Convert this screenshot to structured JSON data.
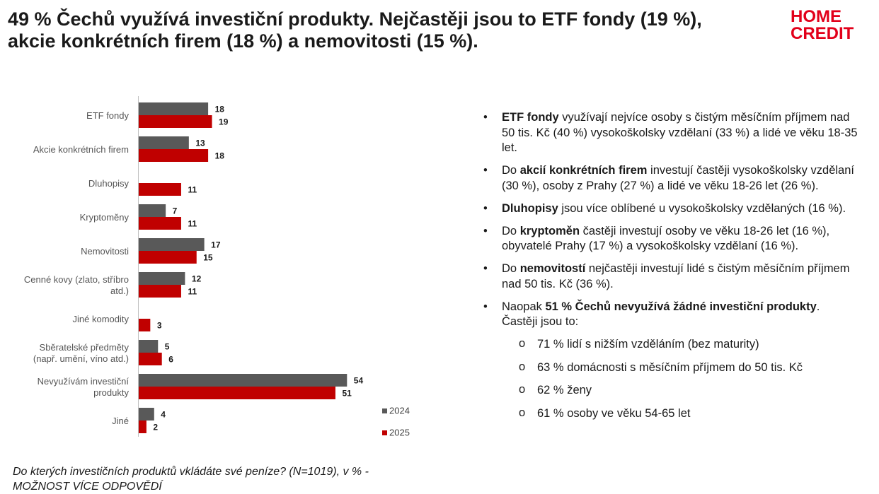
{
  "page": {
    "title_line1": "49 % Čechů využívá investiční produkty. Nejčastěji jsou to ETF fondy (19 %),",
    "title_line2": "akcie konkrétních firem (18 %) a nemovitosti (15 %).",
    "logo_line1": "HOME",
    "logo_line2": "CREDIT",
    "brand_color": "#e2001a",
    "footnote_line1": "Do kterých investičních produktů vkládáte své peníze? (N=1019), v % -",
    "footnote_line2": "MOŽNOST VÍCE ODPOVĚDÍ"
  },
  "chart_data": {
    "type": "bar",
    "orientation": "horizontal",
    "categories": [
      [
        "ETF fondy"
      ],
      [
        "Akcie konkrétních firem"
      ],
      [
        "Dluhopisy"
      ],
      [
        "Kryptoměny"
      ],
      [
        "Nemovitosti"
      ],
      [
        "Cenné kovy (zlato, stříbro",
        "atd.)"
      ],
      [
        "Jiné komodity"
      ],
      [
        "Sběratelské předměty",
        "(např. umění, víno atd.)"
      ],
      [
        "Nevyužívám investiční",
        "produkty"
      ],
      [
        "Jiné"
      ]
    ],
    "series": [
      {
        "name": "2024",
        "color": "#595959",
        "values": [
          18,
          13,
          null,
          7,
          17,
          12,
          null,
          5,
          54,
          4
        ]
      },
      {
        "name": "2025",
        "color": "#c00000",
        "values": [
          19,
          18,
          11,
          11,
          15,
          11,
          3,
          6,
          51,
          2
        ]
      }
    ],
    "xlim": [
      0,
      60
    ],
    "grid": false,
    "legend_position": "bottom-right",
    "title": "",
    "xlabel": "",
    "ylabel": ""
  },
  "bullets": [
    [
      {
        "t": "ETF fondy",
        "b": true
      },
      {
        "t": " využívají nejvíce osoby s čistým měsíčním příjmem nad 50 tis. Kč (40 %) vysokoškolsky vzdělaní (33 %) a lidé ve věku 18-35 let.",
        "b": false
      }
    ],
    [
      {
        "t": "Do ",
        "b": false
      },
      {
        "t": "akcií konkrétních firem",
        "b": true
      },
      {
        "t": " investují častěji vysokoškolsky vzdělaní (30 %), osoby z Prahy (27 %) a lidé ve věku 18-26 let (26 %).",
        "b": false
      }
    ],
    [
      {
        "t": "Dluhopisy",
        "b": true
      },
      {
        "t": " jsou více oblíbené u vysokoškolsky vzdělaných (16 %).",
        "b": false
      }
    ],
    [
      {
        "t": "Do ",
        "b": false
      },
      {
        "t": "kryptoměn",
        "b": true
      },
      {
        "t": " častěji investují osoby ve věku 18-26 let (16 %), obyvatelé Prahy (17 %) a vysokoškolsky vzdělaní (16 %).",
        "b": false
      }
    ],
    [
      {
        "t": "Do ",
        "b": false
      },
      {
        "t": "nemovitostí",
        "b": true
      },
      {
        "t": " nejčastěji investují lidé s čistým měsíčním příjmem nad 50 tis. Kč (36 %).",
        "b": false
      }
    ],
    [
      {
        "t": "Naopak ",
        "b": false
      },
      {
        "t": "51 % Čechů nevyužívá žádné investiční produkty",
        "b": true
      },
      {
        "t": ". Častěji jsou to:",
        "b": false
      }
    ]
  ],
  "sub_bullets": [
    "71 % lidí s nižším vzděláním (bez maturity)",
    "63 % domácnosti s měsíčním příjmem do 50 tis. Kč",
    "62 % ženy",
    "61 % osoby ve věku 54-65 let"
  ]
}
